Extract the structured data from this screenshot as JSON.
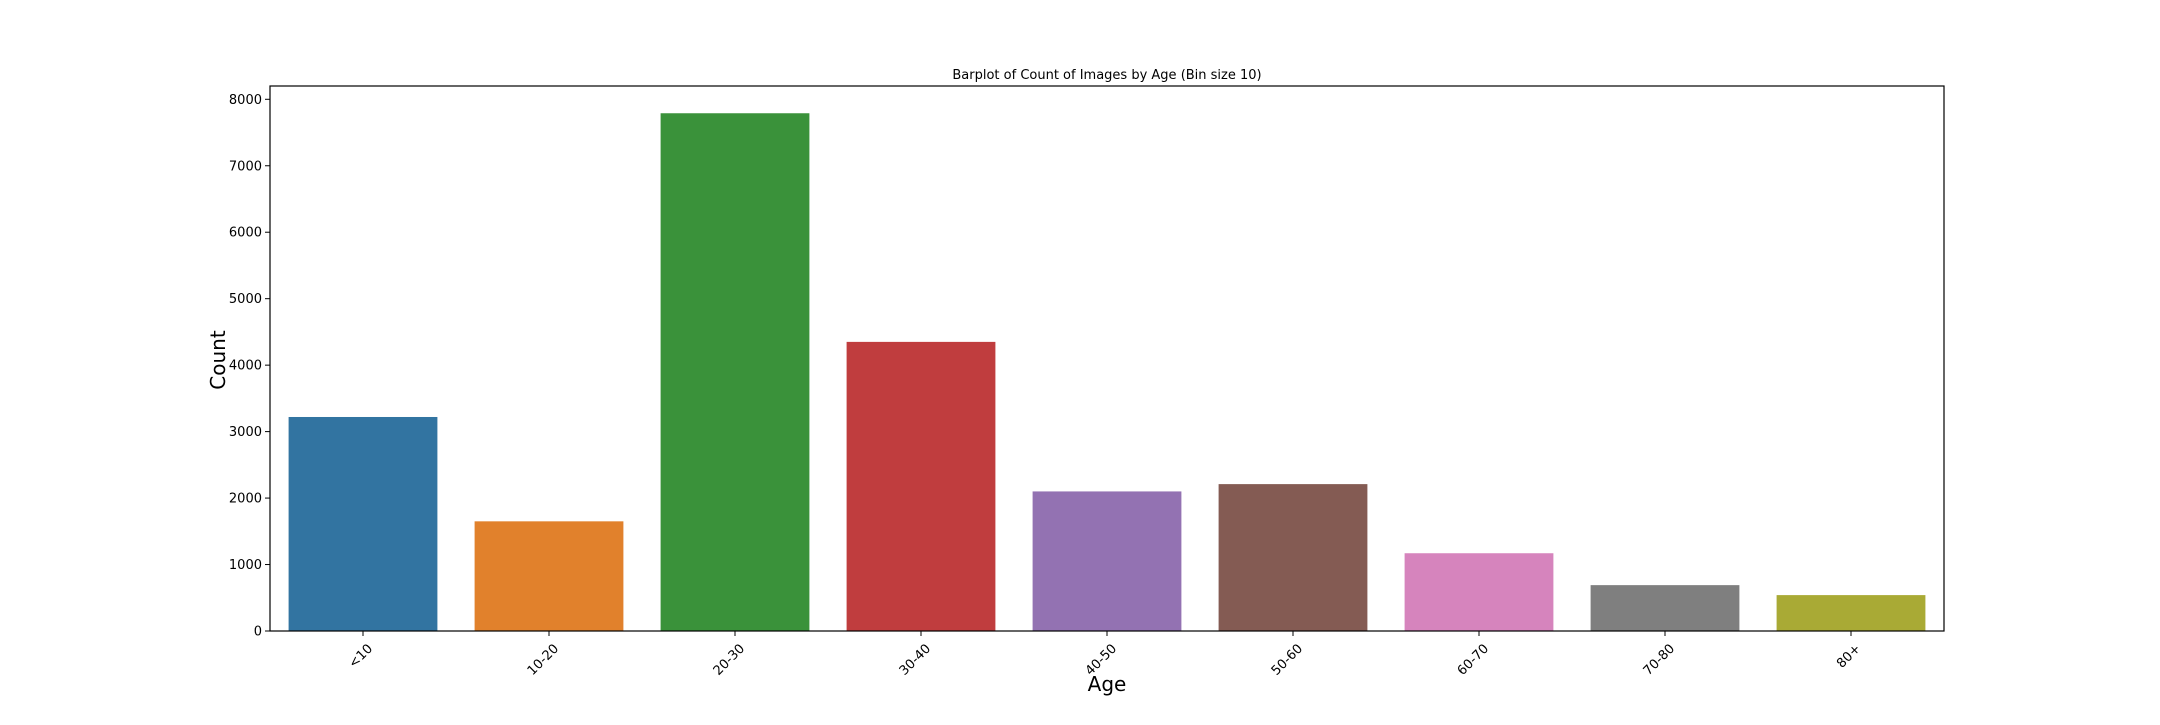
{
  "chart_data": {
    "type": "bar",
    "title": "Barplot of Count of Images by Age (Bin size 10)",
    "xlabel": "Age",
    "ylabel": "Count",
    "categories": [
      "<10",
      "10-20",
      "20-30",
      "30-40",
      "40-50",
      "50-60",
      "60-70",
      "70-80",
      "80+"
    ],
    "values": [
      3220,
      1650,
      7790,
      4350,
      2100,
      2210,
      1170,
      690,
      540
    ],
    "colors": [
      "#3274a1",
      "#e1812c",
      "#3a923a",
      "#c03d3e",
      "#9372b2",
      "#845b53",
      "#d684bd",
      "#7f7f7f",
      "#a9aa35"
    ],
    "ylim": [
      0,
      8200
    ],
    "yticks": [
      0,
      1000,
      2000,
      3000,
      4000,
      5000,
      6000,
      7000,
      8000
    ],
    "xtick_rotation": 45,
    "grid": false,
    "legend": "none"
  }
}
